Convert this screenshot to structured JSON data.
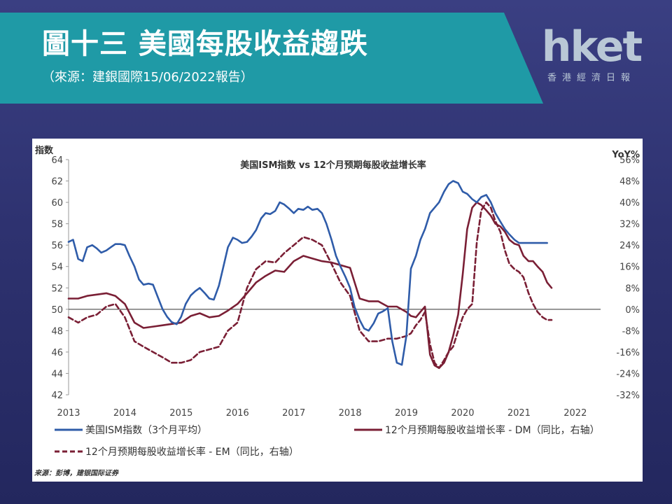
{
  "header": {
    "title": "圖十三 美國每股收益趨跌",
    "subtitle": "（來源：建銀國際15/06/2022報告）"
  },
  "logo": {
    "main": "hket",
    "sub": "香港經濟日報"
  },
  "chart_data": {
    "type": "line",
    "title": "美国ISM指数 vs 12个月预期每股收益增长率",
    "ylabel_left": "指数",
    "ylabel_right": "YoY%",
    "source": "来源：彭博，建银国际证券",
    "xlim": [
      2013,
      2022.45
    ],
    "x_ticks": [
      "2013",
      "2014",
      "2015",
      "2016",
      "2017",
      "2018",
      "2019",
      "2020",
      "2021",
      "2022"
    ],
    "ylim_left": [
      42,
      64
    ],
    "yticks_left": [
      "64",
      "62",
      "60",
      "58",
      "56",
      "54",
      "52",
      "50",
      "48",
      "46",
      "44",
      "42"
    ],
    "ylim_right": [
      -32,
      56
    ],
    "yticks_right": [
      "56%",
      "48%",
      "40%",
      "32%",
      "24%",
      "16%",
      "8%",
      "0%",
      "-8%",
      "-16%",
      "-24%",
      "-32%"
    ],
    "grid": false,
    "legend_position": "bottom",
    "colors": {
      "ism": "#2f5ca9",
      "dm": "#7a1f35",
      "em": "#7a1f35",
      "zero_line": "#333333"
    },
    "series": [
      {
        "name": "美国ISM指数（3个月平均）",
        "axis": "left",
        "style": "solid",
        "x": [
          2013.0,
          2013.08,
          2013.17,
          2013.25,
          2013.33,
          2013.42,
          2013.5,
          2013.58,
          2013.67,
          2013.75,
          2013.83,
          2013.92,
          2014.0,
          2014.08,
          2014.17,
          2014.25,
          2014.33,
          2014.42,
          2014.5,
          2014.58,
          2014.67,
          2014.75,
          2014.83,
          2014.92,
          2015.0,
          2015.08,
          2015.17,
          2015.25,
          2015.33,
          2015.42,
          2015.5,
          2015.58,
          2015.67,
          2015.75,
          2015.83,
          2015.92,
          2016.0,
          2016.08,
          2016.17,
          2016.25,
          2016.33,
          2016.42,
          2016.5,
          2016.58,
          2016.67,
          2016.75,
          2016.83,
          2016.92,
          2017.0,
          2017.08,
          2017.17,
          2017.25,
          2017.33,
          2017.42,
          2017.5,
          2017.58,
          2017.67,
          2017.75,
          2017.83,
          2017.92,
          2018.0,
          2018.08,
          2018.17,
          2018.25,
          2018.33,
          2018.42,
          2018.5,
          2018.58,
          2018.67,
          2018.75,
          2018.83,
          2018.92,
          2019.0,
          2019.08,
          2019.17,
          2019.25,
          2019.33,
          2019.42,
          2019.5,
          2019.58,
          2019.67,
          2019.75,
          2019.83,
          2019.92,
          2020.0,
          2020.08,
          2020.17,
          2020.25,
          2020.33,
          2020.42,
          2020.5,
          2020.58,
          2020.67,
          2020.75,
          2020.83,
          2020.92,
          2021.0,
          2021.08,
          2021.17,
          2021.25,
          2021.33,
          2021.42,
          2021.5
        ],
        "values": [
          56.3,
          56.5,
          54.7,
          54.5,
          55.8,
          56.0,
          55.7,
          55.3,
          55.5,
          55.8,
          56.1,
          56.1,
          56.0,
          55.0,
          54.0,
          52.8,
          52.3,
          52.4,
          52.3,
          51.2,
          50.0,
          49.3,
          48.8,
          48.6,
          49.3,
          50.5,
          51.3,
          51.7,
          52.0,
          51.5,
          51.0,
          50.9,
          52.2,
          54.0,
          55.8,
          56.7,
          56.5,
          56.2,
          56.3,
          56.8,
          57.4,
          58.5,
          59.0,
          58.9,
          59.2,
          60.0,
          59.8,
          59.4,
          59.0,
          59.4,
          59.3,
          59.6,
          59.3,
          59.4,
          59.0,
          58.0,
          56.5,
          55.0,
          54.0,
          53.0,
          52.0,
          50.2,
          49.0,
          48.2,
          48.0,
          48.7,
          49.6,
          49.8,
          50.1,
          47.0,
          45.0,
          44.8,
          47.5,
          53.8,
          55.0,
          56.5,
          57.5,
          59.0,
          59.5,
          60.0,
          61.0,
          61.7,
          62.0,
          61.8,
          61.0,
          60.8,
          60.3,
          60.0,
          60.5,
          60.7,
          60.0,
          59.0,
          58.2,
          57.5,
          57.0,
          56.5,
          56.2,
          56.2,
          56.2,
          56.2,
          56.2,
          56.2,
          56.2
        ]
      },
      {
        "name": "12个月预期每股收益增长率 - DM（同比，右轴）",
        "axis": "right",
        "style": "solid",
        "x": [
          2013.0,
          2013.17,
          2013.33,
          2013.5,
          2013.67,
          2013.83,
          2014.0,
          2014.17,
          2014.33,
          2014.5,
          2014.67,
          2014.83,
          2015.0,
          2015.17,
          2015.33,
          2015.5,
          2015.67,
          2015.83,
          2016.0,
          2016.17,
          2016.33,
          2016.5,
          2016.67,
          2016.83,
          2017.0,
          2017.17,
          2017.33,
          2017.5,
          2017.67,
          2017.83,
          2018.0,
          2018.17,
          2018.33,
          2018.5,
          2018.67,
          2018.83,
          2019.0,
          2019.08,
          2019.17,
          2019.25,
          2019.33,
          2019.42,
          2019.5,
          2019.58,
          2019.67,
          2019.75,
          2019.83,
          2019.92,
          2020.0,
          2020.08,
          2020.17,
          2020.25,
          2020.33,
          2020.42,
          2020.5,
          2020.58,
          2020.67,
          2020.75,
          2020.83,
          2020.92,
          2021.0,
          2021.08,
          2021.17,
          2021.25,
          2021.33,
          2021.42,
          2021.5,
          2021.58
        ],
        "values": [
          4,
          4,
          5,
          5.5,
          6,
          5,
          2,
          -5,
          -7,
          -6.5,
          -6,
          -5.5,
          -5,
          -2.5,
          -1.5,
          -3,
          -2.5,
          -0.5,
          2,
          6,
          10,
          12.5,
          14.5,
          14,
          18,
          20,
          19,
          18,
          17.5,
          16.5,
          15.5,
          4,
          3,
          3,
          1,
          1,
          -1,
          -2.5,
          -3,
          -1,
          1,
          -17,
          -21,
          -22,
          -20,
          -16,
          -10,
          -2,
          13,
          30,
          38,
          40,
          39,
          37,
          35,
          32,
          31,
          29,
          26,
          24.5,
          24,
          20,
          18,
          18,
          16,
          14,
          10,
          8
        ]
      },
      {
        "name": "12个月预期每股收益增长率 - EM（同比，右轴）",
        "axis": "right",
        "style": "dashed",
        "x": [
          2013.0,
          2013.17,
          2013.33,
          2013.5,
          2013.67,
          2013.83,
          2014.0,
          2014.17,
          2014.33,
          2014.5,
          2014.67,
          2014.83,
          2015.0,
          2015.17,
          2015.33,
          2015.5,
          2015.67,
          2015.83,
          2016.0,
          2016.17,
          2016.33,
          2016.5,
          2016.67,
          2016.83,
          2017.0,
          2017.17,
          2017.33,
          2017.5,
          2017.67,
          2017.83,
          2018.0,
          2018.17,
          2018.33,
          2018.5,
          2018.67,
          2018.83,
          2019.0,
          2019.08,
          2019.17,
          2019.25,
          2019.33,
          2019.42,
          2019.5,
          2019.58,
          2019.67,
          2019.75,
          2019.83,
          2019.92,
          2020.0,
          2020.08,
          2020.17,
          2020.25,
          2020.33,
          2020.42,
          2020.5,
          2020.58,
          2020.67,
          2020.75,
          2020.83,
          2020.92,
          2021.0,
          2021.08,
          2021.17,
          2021.25,
          2021.33,
          2021.42,
          2021.5,
          2021.58
        ],
        "values": [
          -3,
          -5,
          -3,
          -2,
          1,
          2,
          -3,
          -12,
          -14,
          -16,
          -18,
          -20,
          -20,
          -19,
          -16,
          -15,
          -14,
          -8,
          -5,
          8,
          15,
          18,
          17.5,
          21,
          24,
          27,
          26,
          24,
          17,
          10,
          5,
          -8,
          -12,
          -12,
          -11,
          -11,
          -10,
          -9,
          -6,
          -4,
          -1,
          -13,
          -20,
          -22,
          -19,
          -16,
          -14,
          -8,
          -3,
          0,
          2,
          25,
          37,
          40,
          38,
          33,
          29,
          22,
          17,
          15,
          14,
          12,
          6,
          2,
          -1,
          -3,
          -4,
          -4
        ]
      }
    ]
  }
}
